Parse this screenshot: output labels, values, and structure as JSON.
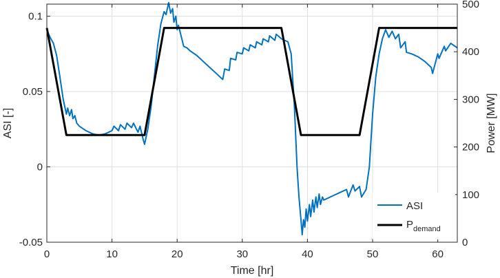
{
  "chart_data": {
    "type": "line",
    "xlabel": "Time [hr]",
    "ylabel_left": "ASI [-]",
    "ylabel_right": "Power [MW]",
    "xlim": [
      0,
      63
    ],
    "ylim_left": [
      -0.05,
      0.108
    ],
    "ylim_right": [
      0,
      500
    ],
    "x_ticks": [
      "0",
      "10",
      "20",
      "30",
      "40",
      "50",
      "60"
    ],
    "y_ticks_left": [
      "-0.05",
      "0",
      "0.05",
      "0.1"
    ],
    "y_ticks_right": [
      "0",
      "100",
      "200",
      "300",
      "400",
      "500"
    ],
    "grid": true,
    "legend_position": "bottom-right",
    "series": [
      {
        "name": "ASI",
        "axis": "left",
        "color": "#0072BD",
        "x": [
          0,
          0.5,
          1,
          1.5,
          2,
          2.5,
          3,
          3.2,
          3.5,
          3.8,
          4,
          4.3,
          4.6,
          5,
          6,
          7,
          8,
          9,
          10,
          10.3,
          11,
          11.3,
          12,
          12.3,
          13,
          13.3,
          14,
          14.3,
          14.8,
          15,
          15.5,
          16,
          16.5,
          17,
          17.5,
          18,
          18.3,
          18.7,
          19,
          19.3,
          19.5,
          19.8,
          20,
          20.2,
          21,
          21.5,
          22,
          23,
          24,
          25,
          26,
          27,
          27.3,
          28,
          28.2,
          29,
          29.2,
          30,
          30.2,
          31,
          31.2,
          32,
          32.2,
          33,
          33.2,
          34,
          34.2,
          35,
          35.2,
          35.5,
          36,
          36.5,
          37,
          37.5,
          38,
          38.4,
          38.7,
          39,
          39.2,
          39.4,
          39.6,
          39.8,
          40,
          40.3,
          40.5,
          40.8,
          41,
          41.3,
          41.5,
          41.8,
          42,
          42.3,
          42.5,
          43,
          44,
          45,
          46,
          46.3,
          47,
          47.3,
          48,
          48.3,
          49,
          49.5,
          50,
          50.5,
          51,
          51.5,
          52,
          52.5,
          53,
          53.5,
          54,
          54.3,
          55,
          55.2,
          56,
          57,
          58,
          59,
          59.2,
          60,
          60.2,
          61,
          61.2,
          62,
          63
        ],
        "values": [
          0.091,
          0.086,
          0.082,
          0.074,
          0.06,
          0.045,
          0.035,
          0.039,
          0.034,
          0.038,
          0.032,
          0.034,
          0.029,
          0.027,
          0.024,
          0.022,
          0.021,
          0.022,
          0.024,
          0.027,
          0.024,
          0.028,
          0.025,
          0.029,
          0.026,
          0.029,
          0.023,
          0.027,
          0.018,
          0.015,
          0.025,
          0.04,
          0.06,
          0.08,
          0.095,
          0.103,
          0.101,
          0.109,
          0.102,
          0.105,
          0.096,
          0.1,
          0.091,
          0.094,
          0.08,
          0.079,
          0.077,
          0.074,
          0.07,
          0.066,
          0.062,
          0.058,
          0.065,
          0.064,
          0.072,
          0.071,
          0.076,
          0.075,
          0.079,
          0.077,
          0.081,
          0.079,
          0.083,
          0.081,
          0.085,
          0.083,
          0.087,
          0.084,
          0.088,
          0.087,
          0.085,
          0.084,
          0.083,
          0.075,
          0.04,
          0.0,
          -0.02,
          -0.035,
          -0.045,
          -0.035,
          -0.04,
          -0.028,
          -0.036,
          -0.025,
          -0.033,
          -0.022,
          -0.03,
          -0.02,
          -0.027,
          -0.018,
          -0.025,
          -0.02,
          -0.022,
          -0.021,
          -0.019,
          -0.017,
          -0.015,
          -0.02,
          -0.012,
          -0.016,
          -0.013,
          -0.02,
          -0.015,
          0.0,
          0.035,
          0.06,
          0.075,
          0.085,
          0.091,
          0.086,
          0.09,
          0.085,
          0.088,
          0.079,
          0.083,
          0.076,
          0.075,
          0.073,
          0.07,
          0.066,
          0.062,
          0.075,
          0.072,
          0.08,
          0.077,
          0.082,
          0.079
        ],
        "label": "ASI"
      },
      {
        "name": "P_demand",
        "axis": "right",
        "color": "#000000",
        "x": [
          0,
          3,
          15,
          18,
          36,
          39,
          48,
          51,
          63
        ],
        "values": [
          450,
          225,
          225,
          450,
          450,
          225,
          225,
          450,
          450
        ],
        "label_main": "P",
        "label_sub": "demand"
      }
    ]
  }
}
